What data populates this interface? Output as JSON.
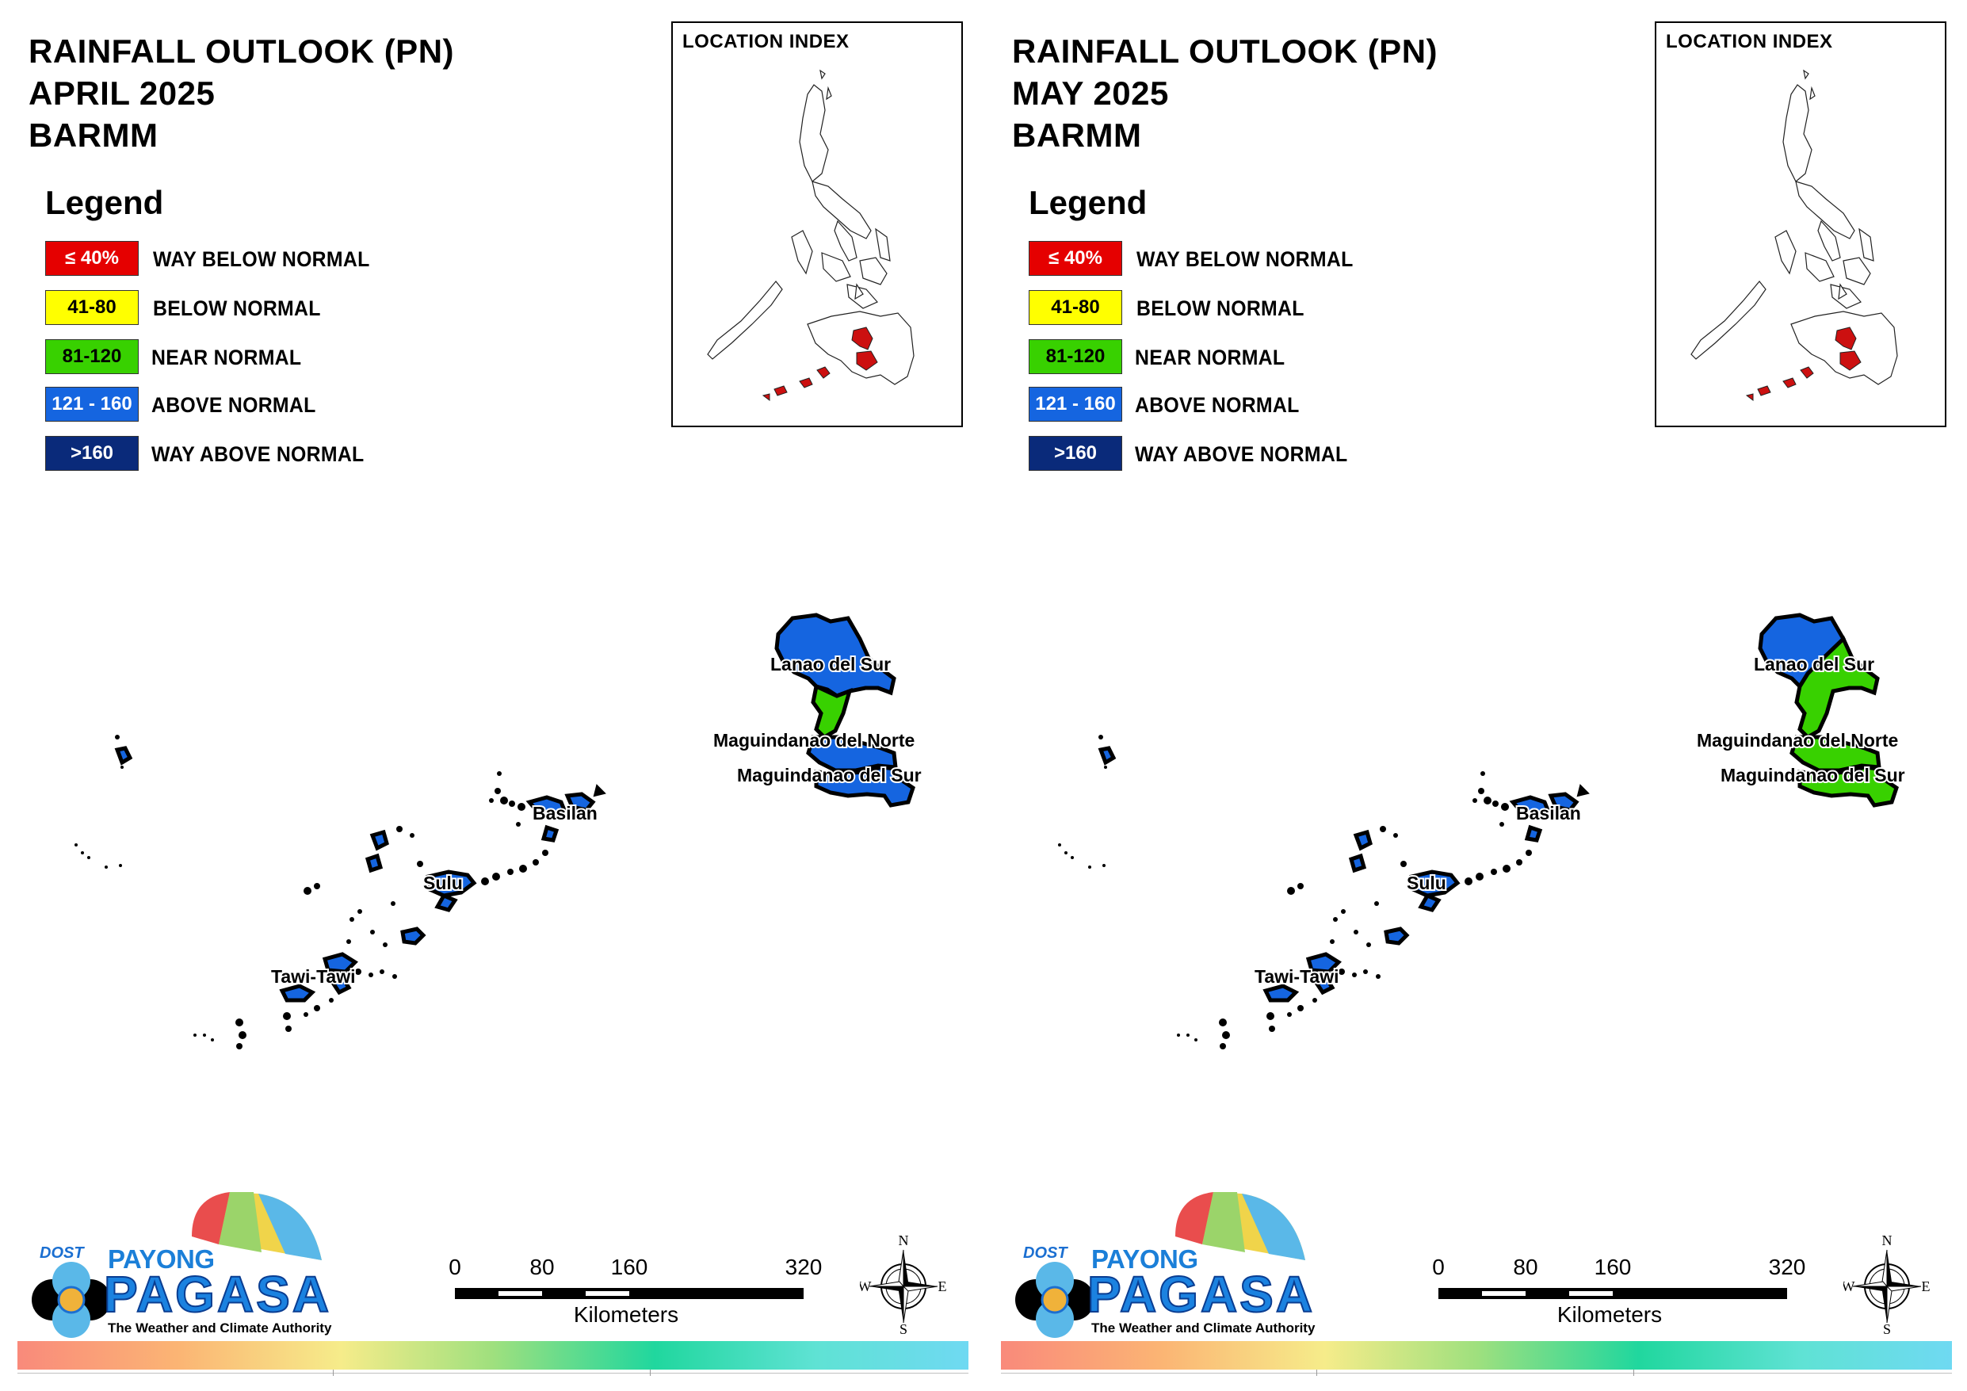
{
  "legend": {
    "title": "Legend",
    "items": [
      {
        "range": "≤ 40%",
        "label": "WAY BELOW NORMAL",
        "color": "#e50000",
        "text_color": "#ffffff"
      },
      {
        "range": "41-80",
        "label": "BELOW NORMAL",
        "color": "#ffff00",
        "text_color": "#000000"
      },
      {
        "range": "81-120",
        "label": "NEAR NORMAL",
        "color": "#38d100",
        "text_color": "#000000"
      },
      {
        "range": "121 - 160",
        "label": "ABOVE NORMAL",
        "color": "#1565e0",
        "text_color": "#ffffff"
      },
      {
        "range": ">160",
        "label": "WAY ABOVE NORMAL",
        "color": "#0a2a7a",
        "text_color": "#ffffff"
      }
    ]
  },
  "location_index": {
    "title": "LOCATION INDEX",
    "highlight_color": "#cc1010"
  },
  "provinces": [
    "Lanao del Sur",
    "Maguindanao del Norte",
    "Maguindanao del Sur",
    "Basilan",
    "Sulu",
    "Tawi-Tawi"
  ],
  "panels": [
    {
      "title_line1": "RAINFALL OUTLOOK (PN)",
      "title_line2": "APRIL 2025",
      "title_line3": "BARMM",
      "province_categories": {
        "Lanao del Sur": "ABOVE NORMAL",
        "Maguindanao del Norte": "ABOVE NORMAL",
        "Maguindanao del Sur": "ABOVE NORMAL",
        "Basilan": "ABOVE NORMAL",
        "Sulu": "ABOVE NORMAL",
        "Tawi-Tawi": "ABOVE NORMAL"
      },
      "partial_categories": {
        "Lanao del Sur (south strip)": "NEAR NORMAL"
      },
      "fills": {
        "lanao_north": "#1565e0",
        "lanao_south": "#38d100",
        "maguindanao": "#1565e0"
      }
    },
    {
      "title_line1": "RAINFALL OUTLOOK (PN)",
      "title_line2": "MAY 2025",
      "title_line3": "BARMM",
      "province_categories": {
        "Lanao del Sur": "ABOVE NORMAL / NEAR NORMAL",
        "Maguindanao del Norte": "NEAR NORMAL",
        "Maguindanao del Sur": "NEAR NORMAL",
        "Basilan": "ABOVE NORMAL",
        "Sulu": "ABOVE NORMAL",
        "Tawi-Tawi": "ABOVE NORMAL"
      },
      "fills": {
        "lanao_north": "#1565e0",
        "lanao_south": "#38d100",
        "maguindanao": "#38d100"
      }
    }
  ],
  "logo": {
    "dost": "DOST",
    "payong": "PAYONG",
    "pagasa": "PAGASA",
    "tagline": "The Weather and Climate Authority"
  },
  "scale": {
    "ticks": [
      "0",
      "80",
      "160",
      "320"
    ],
    "unit": "Kilometers"
  },
  "compass": {
    "n": "N",
    "s": "S",
    "e": "E",
    "w": "W"
  }
}
